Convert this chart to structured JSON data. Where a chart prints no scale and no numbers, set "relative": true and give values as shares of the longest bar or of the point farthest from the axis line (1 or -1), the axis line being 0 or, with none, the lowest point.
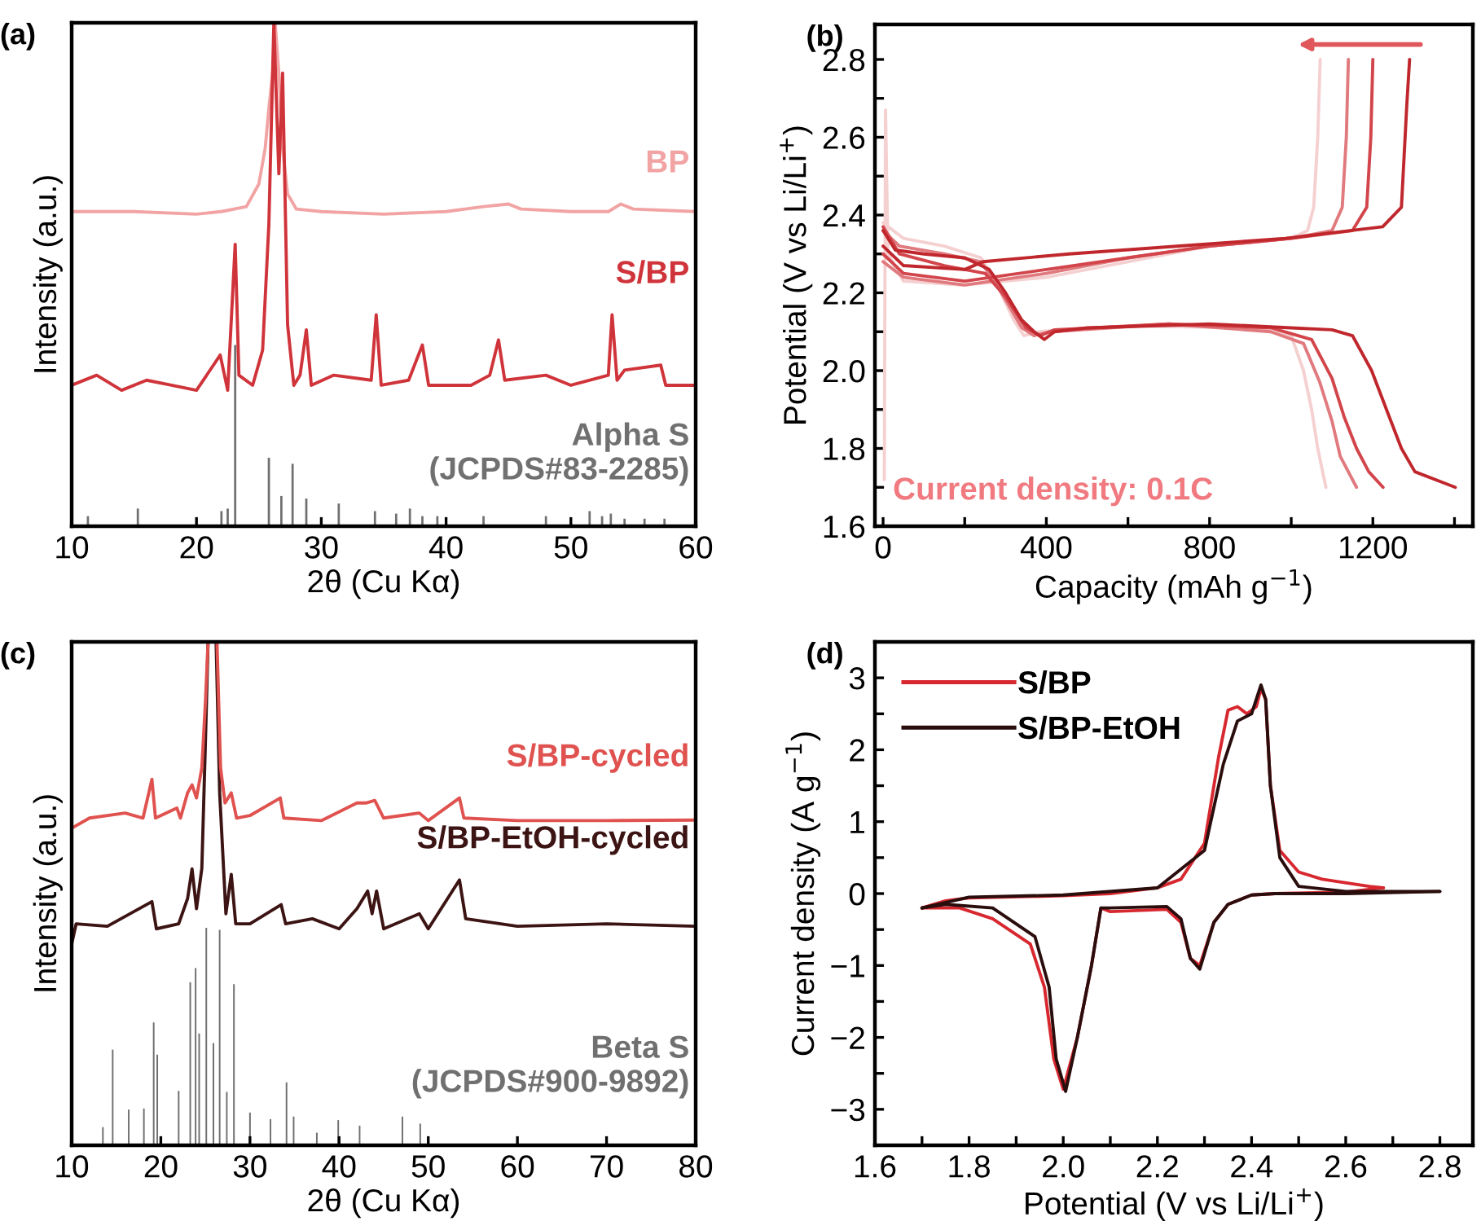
{
  "chart_data": [
    {
      "type": "line",
      "title": "(a)",
      "xlabel": "2θ (Cu Kα)",
      "ylabel": "Intensity (a.u.)",
      "relative": true,
      "xlim": [
        10,
        60
      ],
      "xticks": [
        10,
        20,
        30,
        40,
        50,
        60
      ],
      "series": [
        {
          "name": "BP",
          "color": "#f2a3a3",
          "x": [
            10,
            15,
            20,
            22,
            24,
            25,
            25.5,
            25.8,
            26.1,
            26.3,
            26.6,
            26.9,
            27.3,
            28,
            30,
            35,
            40,
            43,
            45,
            46,
            50,
            53,
            54,
            55,
            60
          ],
          "values": [
            0.625,
            0.625,
            0.62,
            0.625,
            0.635,
            0.68,
            0.75,
            0.83,
            0.9,
            1.0,
            0.9,
            0.75,
            0.66,
            0.63,
            0.625,
            0.62,
            0.625,
            0.635,
            0.64,
            0.63,
            0.625,
            0.625,
            0.64,
            0.63,
            0.625
          ]
        },
        {
          "name": "S/BP",
          "color": "#d0343b",
          "x": [
            10,
            12,
            14,
            16,
            18,
            20,
            21.9,
            22.5,
            23.1,
            23.4,
            24.5,
            25.3,
            25.8,
            26.2,
            26.6,
            26.9,
            27.3,
            27.8,
            28.3,
            28.8,
            29.2,
            31,
            34,
            34.4,
            34.8,
            37,
            38.1,
            38.6,
            42,
            43.5,
            44.2,
            44.7,
            48,
            50,
            53,
            53.3,
            53.7,
            54.3,
            57.2,
            57.6,
            60
          ],
          "values": [
            0.28,
            0.3,
            0.27,
            0.29,
            0.28,
            0.27,
            0.34,
            0.27,
            0.56,
            0.3,
            0.28,
            0.35,
            0.6,
            1.0,
            0.7,
            0.9,
            0.4,
            0.28,
            0.3,
            0.39,
            0.28,
            0.3,
            0.29,
            0.42,
            0.28,
            0.29,
            0.36,
            0.28,
            0.28,
            0.3,
            0.37,
            0.29,
            0.3,
            0.28,
            0.3,
            0.42,
            0.29,
            0.31,
            0.32,
            0.28,
            0.28
          ]
        },
        {
          "name": "Alpha S\n(JCPDS#83-2285)",
          "type": "bar",
          "color": "#707070",
          "x": [
            11.3,
            15.3,
            22.0,
            22.5,
            23.1,
            25.8,
            26.8,
            27.7,
            28.8,
            31.4,
            34.3,
            36.0,
            37.1,
            38.1,
            39.3,
            43.0,
            48.0,
            49.9,
            51.5,
            52.5,
            53.2,
            54.3,
            55.9,
            57.5
          ],
          "values": [
            0.02,
            0.035,
            0.03,
            0.035,
            0.36,
            0.136,
            0.06,
            0.124,
            0.055,
            0.045,
            0.03,
            0.025,
            0.035,
            0.02,
            0.02,
            0.02,
            0.02,
            null,
            0.03,
            0.02,
            0.025,
            0.015,
            0.015,
            0.015
          ]
        }
      ]
    },
    {
      "type": "line",
      "title": "(b)",
      "xlabel": "Capacity (mAh g$^{−1}$)",
      "ylabel": "Potential (V vs Li/Li$^{+}$)",
      "xlim": [
        -20,
        1445
      ],
      "ylim": [
        1.6,
        2.89
      ],
      "xticks": [
        0,
        {
          "value": 200,
          "label": null
        },
        400,
        {
          "value": 600,
          "label": null
        },
        800,
        {
          "value": 1000,
          "label": null
        },
        1200,
        {
          "value": 1400,
          "label": null
        }
      ],
      "yticks": [
        1.6,
        {
          "value": 1.7,
          "label": null
        },
        1.8,
        {
          "value": 1.9,
          "label": null
        },
        {
          "value": 2,
          "label": "2.0"
        },
        {
          "value": 2.1,
          "label": null
        },
        2.2,
        {
          "value": 2.3,
          "label": null
        },
        2.4,
        {
          "value": 2.5,
          "label": null
        },
        2.6,
        {
          "value": 2.7,
          "label": null
        },
        2.8
      ],
      "annotations": [
        "Current density: 0.1C"
      ],
      "series": [
        {
          "color": "#f5d0d1",
          "x": [
            3,
            6,
            12,
            50,
            200,
            400,
            600,
            800,
            1000,
            1040,
            1055,
            1065,
            1071
          ],
          "values": [
            1.72,
            2.67,
            2.3,
            2.23,
            2.22,
            2.24,
            2.28,
            2.32,
            2.34,
            2.36,
            2.42,
            2.6,
            2.8
          ]
        },
        {
          "color": "#f5d0d1",
          "x": [
            0,
            50,
            150,
            240,
            280,
            320,
            345,
            380,
            600,
            900,
            1000,
            1030,
            1050,
            1065,
            1085
          ],
          "values": [
            2.38,
            2.34,
            2.32,
            2.29,
            2.22,
            2.13,
            2.09,
            2.1,
            2.115,
            2.11,
            2.09,
            2.0,
            1.9,
            1.8,
            1.7
          ]
        },
        {
          "color": "#e07a7e",
          "x": [
            0,
            50,
            200,
            400,
            600,
            800,
            1000,
            1100,
            1125,
            1135,
            1140
          ],
          "values": [
            2.28,
            2.24,
            2.22,
            2.25,
            2.29,
            2.32,
            2.34,
            2.36,
            2.42,
            2.6,
            2.8
          ]
        },
        {
          "color": "#e07a7e",
          "x": [
            0,
            40,
            150,
            240,
            290,
            340,
            370,
            410,
            700,
            950,
            1030,
            1070,
            1100,
            1120,
            1160
          ],
          "values": [
            2.36,
            2.32,
            2.3,
            2.28,
            2.2,
            2.11,
            2.09,
            2.1,
            2.12,
            2.1,
            2.07,
            1.97,
            1.87,
            1.78,
            1.7
          ]
        },
        {
          "color": "#d2454b",
          "x": [
            0,
            50,
            200,
            400,
            600,
            800,
            1000,
            1150,
            1185,
            1195,
            1200
          ],
          "values": [
            2.3,
            2.25,
            2.23,
            2.26,
            2.29,
            2.32,
            2.34,
            2.36,
            2.42,
            2.6,
            2.8
          ]
        },
        {
          "color": "#d2454b",
          "x": [
            0,
            40,
            150,
            250,
            300,
            350,
            385,
            420,
            700,
            950,
            1050,
            1100,
            1130,
            1160,
            1190,
            1225
          ],
          "values": [
            2.37,
            2.3,
            2.27,
            2.25,
            2.19,
            2.11,
            2.09,
            2.105,
            2.12,
            2.11,
            2.08,
            1.98,
            1.88,
            1.8,
            1.74,
            1.7
          ]
        },
        {
          "color": "#c0272d",
          "x": [
            0,
            50,
            200,
            245,
            456,
            720,
            985,
            1224,
            1270,
            1283,
            1290
          ],
          "values": [
            2.32,
            2.27,
            2.26,
            2.28,
            2.3,
            2.32,
            2.34,
            2.37,
            2.42,
            2.68,
            2.8
          ]
        },
        {
          "color": "#c0272d",
          "x": [
            0,
            30,
            100,
            200,
            260,
            300,
            340,
            370,
            395,
            420,
            500,
            800,
            1000,
            1100,
            1150,
            1197,
            1237,
            1270,
            1303,
            1402
          ],
          "values": [
            2.36,
            2.31,
            2.3,
            2.29,
            2.26,
            2.2,
            2.13,
            2.1,
            2.08,
            2.1,
            2.11,
            2.12,
            2.11,
            2.105,
            2.09,
            2.0,
            1.89,
            1.8,
            1.74,
            1.7
          ]
        }
      ]
    },
    {
      "type": "line",
      "title": "(c)",
      "xlabel": "2θ (Cu Kα)",
      "ylabel": "Intensity (a.u.)",
      "relative": true,
      "xlim": [
        10,
        80
      ],
      "xticks": [
        10,
        20,
        30,
        40,
        50,
        60,
        70,
        80
      ],
      "series": [
        {
          "name": "S/BP-EtOH-cycled",
          "color": "#3d1414",
          "x": [
            10,
            10.5,
            14,
            19,
            19.5,
            22,
            23,
            23.5,
            24,
            24.6,
            25.0,
            25.3,
            26.2,
            26.6,
            27.3,
            27.9,
            28.4,
            30,
            33.5,
            34,
            37,
            40,
            42,
            43.2,
            43.7,
            44.2,
            45,
            49,
            50,
            53.5,
            54.2,
            60,
            70,
            80
          ],
          "values": [
            0.4,
            0.44,
            0.435,
            0.484,
            0.43,
            0.44,
            0.49,
            0.549,
            0.47,
            0.55,
            0.8,
            1.0,
            1.0,
            0.7,
            0.46,
            0.538,
            0.44,
            0.44,
            0.478,
            0.44,
            0.45,
            0.43,
            0.47,
            0.505,
            0.46,
            0.505,
            0.43,
            0.46,
            0.43,
            0.527,
            0.45,
            0.435,
            0.44,
            0.435
          ]
        },
        {
          "name": "S/BP-cycled",
          "color": "#e0524f",
          "x": [
            10,
            12,
            16,
            18,
            19.0,
            19.4,
            21.8,
            22.2,
            23.0,
            23.5,
            24,
            24.6,
            25.0,
            25.3,
            26.3,
            26.7,
            27.2,
            27.9,
            28.5,
            30,
            33.4,
            33.8,
            38,
            42,
            43,
            44,
            45,
            49,
            50,
            53.5,
            54,
            60,
            70,
            80
          ],
          "values": [
            0.63,
            0.65,
            0.66,
            0.65,
            0.727,
            0.65,
            0.67,
            0.65,
            0.7,
            0.716,
            0.69,
            0.75,
            0.88,
            1.0,
            1.0,
            0.75,
            0.68,
            0.7,
            0.65,
            0.655,
            0.69,
            0.65,
            0.645,
            0.68,
            0.68,
            0.685,
            0.65,
            0.66,
            0.645,
            0.69,
            0.65,
            0.645,
            0.645,
            0.646
          ]
        },
        {
          "name": "Beta S\n(JCPDS#900-9892)",
          "type": "bar",
          "color": "#707070",
          "x": [
            13.5,
            14.6,
            16.4,
            18.1,
            19.2,
            19.6,
            22.0,
            23.3,
            23.9,
            24.3,
            25.1,
            25.9,
            26.6,
            27.4,
            28.2,
            30.0,
            32.3,
            34.1,
            34.9,
            37.5,
            39.9,
            42.3,
            47.1,
            49.1
          ],
          "values": [
            0.036,
            0.19,
            0.071,
            0.073,
            0.244,
            0.18,
            0.108,
            0.324,
            0.352,
            0.222,
            0.432,
            0.203,
            0.428,
            0.106,
            0.32,
            0.065,
            0.052,
            0.125,
            0.057,
            0.025,
            0.05,
            0.039,
            0.057,
            0.043
          ]
        }
      ]
    },
    {
      "type": "line",
      "title": "(d)",
      "xlabel": "Potential (V vs Li/Li$^{+}$)",
      "ylabel": "Current density (A g$^{−1}$)",
      "xlim": [
        1.6,
        2.87
      ],
      "ylim": [
        -3.5,
        3.5
      ],
      "legend": "top left",
      "xticks": [
        1.6,
        {
          "value": 1.7,
          "label": null
        },
        1.8,
        {
          "value": 1.9,
          "label": null
        },
        {
          "value": 2,
          "label": "2.0"
        },
        {
          "value": 2.1,
          "label": null
        },
        2.2,
        {
          "value": 2.3,
          "label": null
        },
        2.4,
        {
          "value": 2.5,
          "label": null
        },
        2.6,
        {
          "value": 2.7,
          "label": null
        },
        2.8
      ],
      "yticks": [
        {
          "value": -3,
          "label": "−3"
        },
        {
          "value": -2.5,
          "label": null
        },
        {
          "value": -2,
          "label": "−2"
        },
        {
          "value": -1.5,
          "label": null
        },
        {
          "value": -1,
          "label": "−1"
        },
        {
          "value": -0.5,
          "label": null
        },
        0,
        {
          "value": 0.5,
          "label": null
        },
        1,
        {
          "value": 1.5,
          "label": null
        },
        2,
        {
          "value": 2.5,
          "label": null
        },
        3
      ],
      "series": [
        {
          "name": "S/BP",
          "color": "#d7282f",
          "x": [
            1.7,
            1.75,
            1.8,
            2.0,
            2.1,
            2.2,
            2.25,
            2.3,
            2.33,
            2.35,
            2.37,
            2.39,
            2.41,
            2.42,
            2.43,
            2.44,
            2.46,
            2.5,
            2.55,
            2.65,
            2.68
          ],
          "values": [
            -0.2,
            -0.1,
            -0.06,
            -0.03,
            0.0,
            0.08,
            0.2,
            0.7,
            1.9,
            2.55,
            2.6,
            2.5,
            2.6,
            2.85,
            2.7,
            1.5,
            0.6,
            0.3,
            0.2,
            0.1,
            0.08
          ]
        },
        {
          "color": "#d7282f",
          "x": [
            1.7,
            1.78,
            1.85,
            1.93,
            1.96,
            1.98,
            2.0,
            2.03,
            2.06,
            2.08,
            2.1,
            2.22,
            2.25,
            2.27,
            2.29,
            2.32,
            2.35,
            2.4,
            2.45,
            2.6,
            2.68
          ],
          "values": [
            -0.2,
            -0.2,
            -0.35,
            -0.7,
            -1.3,
            -2.3,
            -2.72,
            -2.0,
            -1.0,
            -0.2,
            -0.25,
            -0.22,
            -0.4,
            -0.9,
            -1.0,
            -0.4,
            -0.15,
            -0.02,
            0.0,
            0.02,
            0.08
          ]
        },
        {
          "name": "S/BP-EtOH",
          "color": "#2a0d0d",
          "x": [
            1.7,
            1.8,
            2.0,
            2.2,
            2.3,
            2.34,
            2.37,
            2.4,
            2.42,
            2.43,
            2.44,
            2.46,
            2.5,
            2.6,
            2.8
          ],
          "values": [
            -0.2,
            -0.05,
            -0.02,
            0.08,
            0.6,
            1.8,
            2.4,
            2.5,
            2.9,
            2.7,
            1.5,
            0.5,
            0.1,
            0.03,
            0.03
          ]
        },
        {
          "color": "#2a0d0d",
          "x": [
            1.7,
            1.75,
            1.85,
            1.94,
            1.97,
            1.985,
            2.005,
            2.03,
            2.06,
            2.08,
            2.1,
            2.22,
            2.25,
            2.27,
            2.29,
            2.32,
            2.35,
            2.4,
            2.45,
            2.6,
            2.8
          ],
          "values": [
            -0.2,
            -0.15,
            -0.2,
            -0.6,
            -1.3,
            -2.3,
            -2.75,
            -2.0,
            -1.0,
            -0.2,
            -0.2,
            -0.18,
            -0.35,
            -0.9,
            -1.05,
            -0.4,
            -0.15,
            -0.02,
            0.0,
            0.0,
            0.03
          ]
        }
      ]
    }
  ]
}
